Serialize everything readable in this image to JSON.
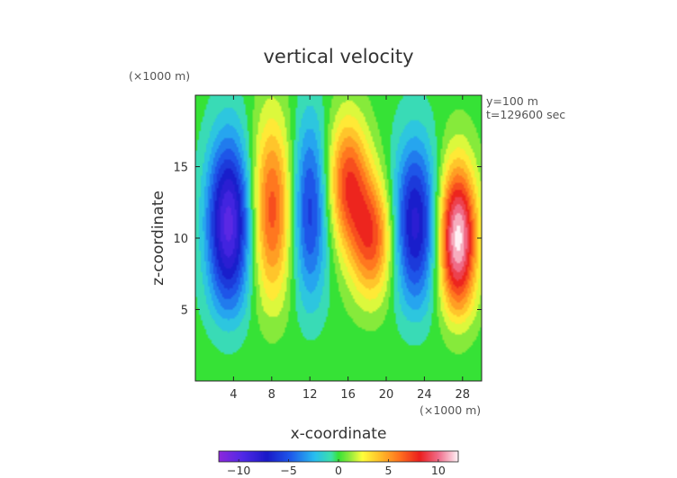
{
  "chart_data": {
    "type": "heatmap",
    "title": "vertical velocity",
    "xlabel": "x-coordinate",
    "ylabel": "z-coordinate",
    "x_unit": "(×1000 m)",
    "y_unit": "(×1000 m)",
    "annotations": [
      "y=100 m",
      "t=129600 sec"
    ],
    "xlim": [
      0,
      30
    ],
    "ylim": [
      0,
      20
    ],
    "x_ticks": [
      4,
      8,
      12,
      16,
      20,
      24,
      28
    ],
    "y_ticks": [
      5,
      10,
      15
    ],
    "colorbar": {
      "min": -12,
      "max": 12,
      "ticks": [
        -10,
        -5,
        0,
        5,
        10
      ],
      "tick_labels": [
        "−10",
        "−5",
        "0",
        "5",
        "10"
      ]
    },
    "features": [
      {
        "kind": "downdraft",
        "x": 3.5,
        "z": 11,
        "peak": -10
      },
      {
        "kind": "updraft",
        "x": 8.0,
        "z": 12,
        "peak": 7
      },
      {
        "kind": "downdraft",
        "x": 12.0,
        "z": 12,
        "peak": -6
      },
      {
        "kind": "updraft",
        "x": 16.0,
        "z": 14,
        "peak": 7
      },
      {
        "kind": "updraft",
        "x": 18.5,
        "z": 10,
        "peak": 7
      },
      {
        "kind": "downdraft",
        "x": 23.0,
        "z": 11,
        "peak": -8
      },
      {
        "kind": "updraft",
        "x": 27.5,
        "z": 10,
        "peak": 12
      }
    ]
  }
}
